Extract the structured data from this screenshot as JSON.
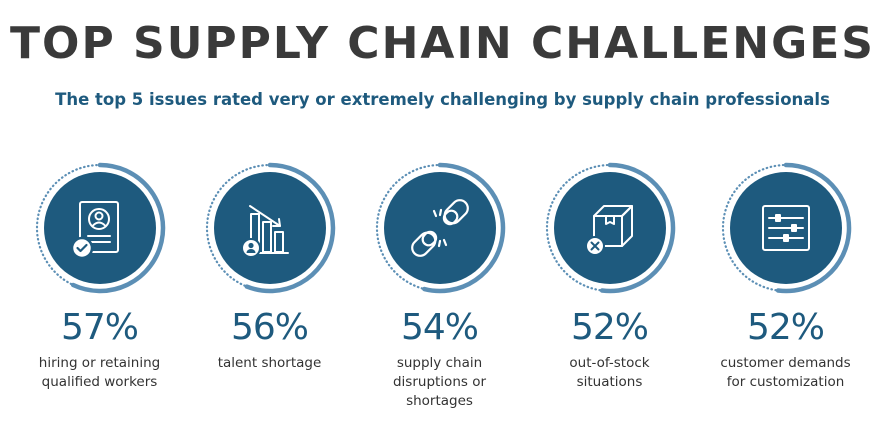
{
  "header": {
    "title": "TOP SUPPLY CHAIN CHALLENGES",
    "subtitle": "The top 5 issues rated very or extremely challenging by supply chain professionals"
  },
  "colors": {
    "circle": "#1e5a7e",
    "ring": "#5c8fb5",
    "title": "#3a3a3a",
    "accent": "#1e5a7e"
  },
  "chart_data": {
    "type": "bar",
    "categories": [
      "hiring or retaining qualified workers",
      "talent shortage",
      "supply chain disruptions or shortages",
      "out-of-stock situations",
      "customer demands for customization"
    ],
    "values": [
      57,
      56,
      54,
      52,
      52
    ],
    "title": "TOP SUPPLY CHAIN CHALLENGES",
    "subtitle": "The top 5 issues rated very or extremely challenging by supply chain professionals",
    "unit": "%",
    "ylim": [
      0,
      100
    ]
  },
  "items": [
    {
      "pct": "57%",
      "label": "hiring or retaining\nqualified workers",
      "icon": "resume-check-icon",
      "value": 57
    },
    {
      "pct": "56%",
      "label": "talent shortage",
      "icon": "declining-bar-chart-icon",
      "value": 56
    },
    {
      "pct": "54%",
      "label": "supply chain\ndisruptions or\nshortages",
      "icon": "broken-chain-icon",
      "value": 54
    },
    {
      "pct": "52%",
      "label": "out-of-stock\nsituations",
      "icon": "box-x-icon",
      "value": 52
    },
    {
      "pct": "52%",
      "label": "customer demands\nfor customization",
      "icon": "sliders-icon",
      "value": 52
    }
  ]
}
